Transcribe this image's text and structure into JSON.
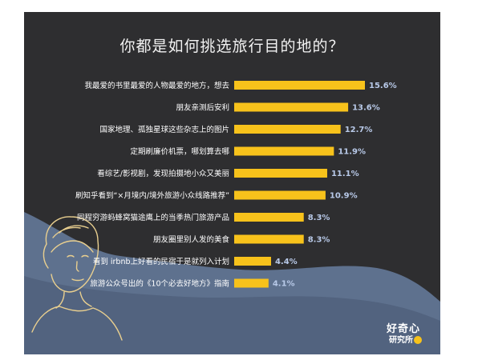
{
  "chart_data": {
    "type": "bar",
    "orientation": "horizontal",
    "title": "你都是如何挑选旅行目的地的？",
    "categories": [
      "我最爱的书里最爱的人物最爱的地方，想去",
      "朋友亲测后安利",
      "国家地理、孤独星球这些杂志上的图片",
      "定期刷廉价机票，哪划算去哪",
      "看综艺/影视剧，发现拍摄地小众又美丽",
      "刷知乎看到“×月境内/境外旅游小众线路推荐”",
      "同程穷游蚂蜂窝猫途鹰上的当季热门旅游产品",
      "朋友圈里别人发的美食",
      "看到 irbnb上好看的民宿于是就列入计划",
      "旅游公众号出的《10个必去好地方》指南"
    ],
    "values": [
      15.6,
      13.6,
      12.7,
      11.9,
      11.1,
      10.9,
      8.3,
      8.3,
      4.4,
      4.1
    ],
    "value_labels": [
      "15.6%",
      "13.6%",
      "12.7%",
      "11.9%",
      "11.1%",
      "10.9%",
      "8.3%",
      "8.3%",
      "4.4%",
      "4.1%"
    ],
    "unit": "%",
    "xlim": [
      0,
      15.6
    ],
    "grid": false,
    "legend": "none"
  },
  "brand": {
    "line1": "好奇心",
    "line2": "研究所"
  },
  "colors": {
    "background": "#2e2e30",
    "bar": "#f7c21b",
    "value_label": "#b8c9e8",
    "category_label": "#ffffff",
    "mountain": "#5e718e"
  }
}
